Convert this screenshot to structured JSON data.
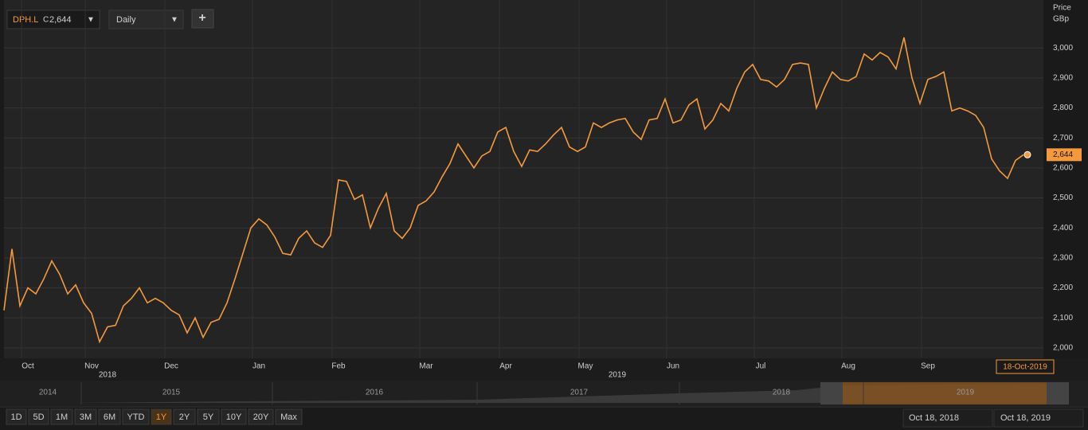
{
  "toolbar": {
    "ticker": "DPH.L",
    "close_prefix": "C",
    "interval": "Daily",
    "add": "+"
  },
  "chart_data": {
    "type": "line",
    "y_axis_title": "Price",
    "y_axis_unit": "GBp",
    "color": "#f59a3c",
    "grid": true,
    "categories": [
      null,
      null,
      null,
      "Oct",
      null,
      null,
      null,
      null,
      null,
      null,
      null,
      "Nov",
      null,
      null,
      null,
      null,
      null,
      null,
      null,
      null,
      null,
      "Dec",
      null,
      null,
      null,
      null,
      null,
      null,
      null,
      null,
      null,
      null,
      "Jan",
      null,
      null,
      null,
      null,
      null,
      null,
      null,
      null,
      null,
      "Feb",
      null,
      null,
      null,
      null,
      null,
      null,
      null,
      null,
      null,
      null,
      "Mar",
      null,
      null,
      null,
      null,
      null,
      null,
      null,
      null,
      null,
      "Apr",
      null,
      null,
      null,
      null,
      null,
      null,
      null,
      null,
      null,
      "May",
      null,
      null,
      null,
      null,
      null,
      null,
      null,
      null,
      null,
      null,
      "Jun",
      null,
      null,
      null,
      null,
      null,
      null,
      null,
      null,
      null,
      null,
      "Jul",
      null,
      null,
      null,
      null,
      null,
      null,
      null,
      null,
      null,
      null,
      "Aug",
      null,
      null,
      null,
      null,
      null,
      null,
      null,
      null,
      null,
      "Sep",
      null,
      null,
      null,
      null,
      null,
      null,
      null,
      null,
      null,
      null,
      null,
      null
    ],
    "year_categories": [
      null,
      null,
      null,
      null,
      null,
      null,
      null,
      null,
      null,
      null,
      null,
      null,
      null,
      "2018",
      null,
      null,
      null,
      null,
      null,
      null,
      null,
      null,
      null,
      null,
      null,
      null,
      null,
      null,
      null,
      null,
      null,
      null,
      null,
      null,
      null,
      null,
      null,
      null,
      null,
      null,
      null,
      null,
      null,
      null,
      null,
      null,
      null,
      null,
      null,
      null,
      null,
      null,
      null,
      null,
      null,
      null,
      null,
      null,
      null,
      null,
      null,
      null,
      null,
      null,
      null,
      null,
      null,
      null,
      null,
      null,
      null,
      null,
      null,
      null,
      null,
      null,
      null,
      "2019",
      null,
      null,
      null,
      null,
      null,
      null,
      null,
      null,
      null,
      null,
      null,
      null,
      null,
      null,
      null,
      null,
      null,
      null,
      null,
      null,
      null,
      null,
      null,
      null,
      null,
      null,
      null,
      null,
      null,
      null,
      null,
      null,
      null,
      null,
      null,
      null,
      null,
      null,
      null,
      null,
      null,
      null,
      null,
      null,
      null,
      null,
      null,
      null,
      null
    ],
    "values": [
      2125,
      2330,
      2140,
      2200,
      2180,
      2230,
      2290,
      2245,
      2180,
      2210,
      2150,
      2115,
      2020,
      2070,
      2075,
      2140,
      2165,
      2200,
      2150,
      2165,
      2150,
      2125,
      2110,
      2050,
      2100,
      2035,
      2085,
      2095,
      2150,
      2230,
      2315,
      2400,
      2430,
      2410,
      2370,
      2315,
      2310,
      2365,
      2390,
      2350,
      2335,
      2375,
      2560,
      2555,
      2495,
      2510,
      2400,
      2465,
      2515,
      2390,
      2365,
      2400,
      2475,
      2490,
      2520,
      2570,
      2615,
      2680,
      2640,
      2600,
      2640,
      2655,
      2720,
      2735,
      2655,
      2605,
      2660,
      2655,
      2680,
      2710,
      2735,
      2670,
      2655,
      2670,
      2750,
      2735,
      2750,
      2760,
      2765,
      2720,
      2695,
      2760,
      2765,
      2830,
      2750,
      2760,
      2810,
      2830,
      2730,
      2760,
      2815,
      2790,
      2865,
      2920,
      2945,
      2895,
      2890,
      2870,
      2895,
      2945,
      2950,
      2945,
      2800,
      2865,
      2920,
      2895,
      2890,
      2905,
      2980,
      2960,
      2985,
      2970,
      2930,
      3035,
      2900,
      2815,
      2895,
      2905,
      2920,
      2790,
      2800,
      2790,
      2775,
      2735,
      2630,
      2590,
      2565,
      2625,
      2644
    ],
    "value_labels": [
      null,
      null,
      null,
      null,
      null,
      null,
      null,
      null,
      null,
      null,
      null,
      null,
      null,
      null,
      null,
      null,
      null,
      null,
      null,
      null,
      null,
      null,
      null,
      null,
      null,
      null,
      null,
      null,
      null,
      null,
      null,
      null,
      null,
      null,
      null,
      null,
      null,
      null,
      null,
      null,
      null,
      null,
      null,
      null,
      null,
      null,
      null,
      null,
      null,
      null,
      null,
      null,
      null,
      null,
      null,
      null,
      null,
      null,
      null,
      null,
      null,
      null,
      null,
      null,
      null,
      null,
      null,
      null,
      null,
      null,
      null,
      null,
      null,
      null,
      null,
      null,
      null,
      null,
      null,
      null,
      null,
      null,
      null,
      null,
      null,
      null,
      null,
      null,
      null,
      null,
      null,
      null,
      null,
      null,
      null,
      null,
      null,
      null,
      null,
      null,
      null,
      null,
      null,
      null,
      null,
      null,
      null,
      null,
      null,
      null,
      null,
      null,
      null,
      null,
      null,
      null,
      null,
      null,
      null,
      null,
      null,
      null,
      null,
      null,
      null,
      null,
      null,
      null,
      "2,644"
    ],
    "date_label": "18-Oct-2019",
    "ylim": [
      1965,
      3160
    ],
    "yticks": [
      {
        "value": 2000,
        "label": "2,000"
      },
      {
        "value": 2100,
        "label": "2,100"
      },
      {
        "value": 2200,
        "label": "2,200"
      },
      {
        "value": 2300,
        "label": "2,300"
      },
      {
        "value": 2400,
        "label": "2,400"
      },
      {
        "value": 2500,
        "label": "2,500"
      },
      {
        "value": 2600,
        "label": "2,600"
      },
      {
        "value": 2700,
        "label": "2,700"
      },
      {
        "value": 2800,
        "label": "2,800"
      },
      {
        "value": 2900,
        "label": "2,900"
      },
      {
        "value": 3000,
        "label": "3,000"
      }
    ]
  },
  "navigator": {
    "years": [
      "2014",
      "2015",
      "2016",
      "2017",
      "2018",
      "2019"
    ]
  },
  "range_buttons": [
    "1D",
    "5D",
    "1M",
    "3M",
    "6M",
    "YTD",
    "1Y",
    "2Y",
    "5Y",
    "10Y",
    "20Y",
    "Max"
  ],
  "selected_range_index": 6,
  "date_range": {
    "from": "Oct 18, 2018",
    "to": "Oct 18, 2019"
  }
}
